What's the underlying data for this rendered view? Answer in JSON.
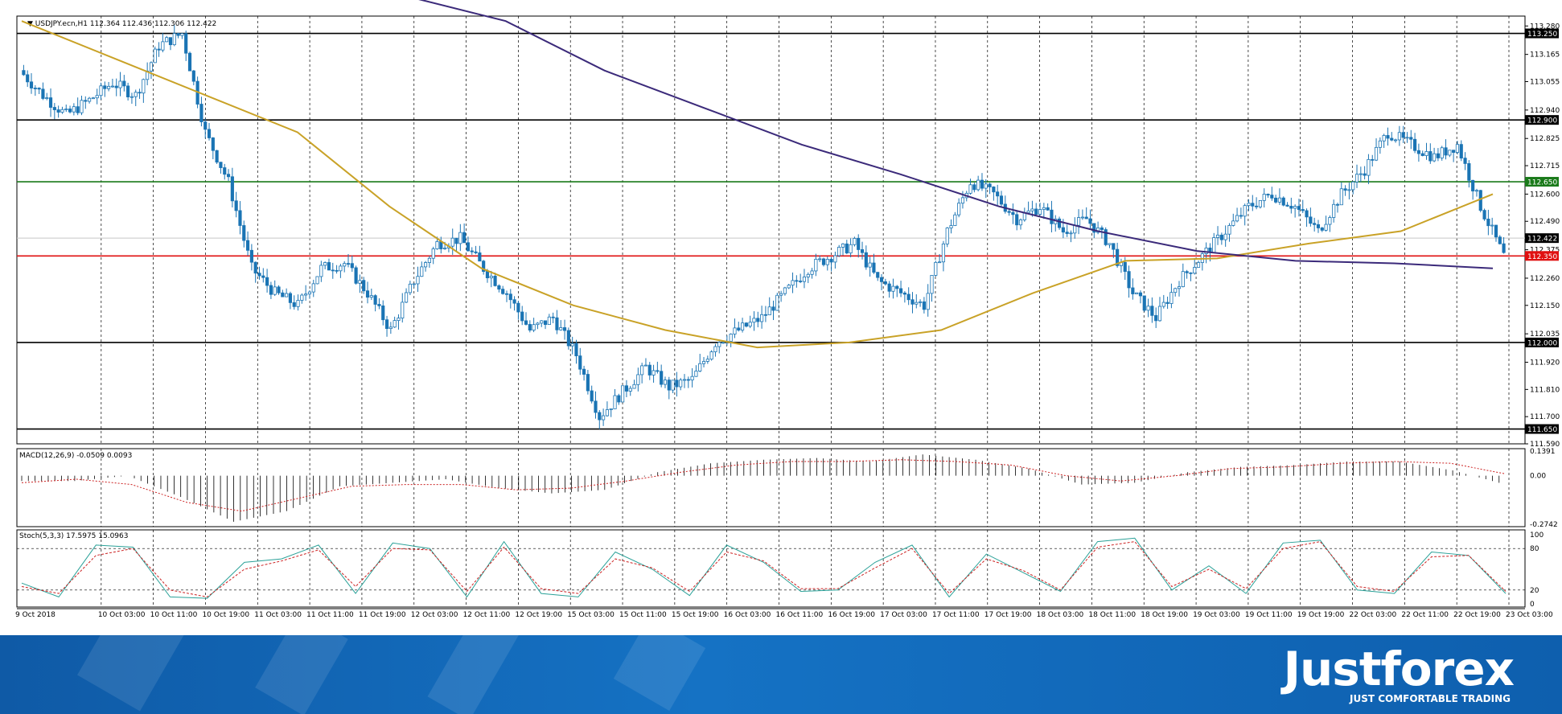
{
  "chart_data": [
    {
      "type": "candlestick",
      "title": "USDJPY.ecn,H1  112.364 112.436 112.306 112.422",
      "symbol": "USDJPY.ecn",
      "timeframe": "H1",
      "ohlc_current": {
        "open": 112.364,
        "high": 112.436,
        "low": 112.306,
        "close": 112.422
      },
      "ylim": [
        111.59,
        113.32
      ],
      "y_ticks": [
        "113.280",
        "113.165",
        "113.055",
        "112.940",
        "112.825",
        "112.715",
        "112.600",
        "112.490",
        "112.375",
        "112.260",
        "112.150",
        "112.035",
        "111.920",
        "111.810",
        "111.700",
        "111.590"
      ],
      "x_ticks": [
        "9 Oct 2018",
        "10 Oct 03:00",
        "10 Oct 11:00",
        "10 Oct 19:00",
        "11 Oct 03:00",
        "11 Oct 11:00",
        "11 Oct 19:00",
        "12 Oct 03:00",
        "12 Oct 11:00",
        "12 Oct 19:00",
        "15 Oct 03:00",
        "15 Oct 11:00",
        "15 Oct 19:00",
        "16 Oct 03:00",
        "16 Oct 11:00",
        "16 Oct 19:00",
        "17 Oct 03:00",
        "17 Oct 11:00",
        "17 Oct 19:00",
        "18 Oct 03:00",
        "18 Oct 11:00",
        "18 Oct 19:00",
        "19 Oct 03:00",
        "19 Oct 11:00",
        "19 Oct 19:00",
        "22 Oct 03:00",
        "22 Oct 11:00",
        "22 Oct 19:00",
        "23 Oct 03:00"
      ],
      "candle_color": "#1a74b4",
      "price_path": [
        113.1,
        113.0,
        112.92,
        112.98,
        113.05,
        113.0,
        113.2,
        113.25,
        112.85,
        112.65,
        112.3,
        112.2,
        112.15,
        112.3,
        112.32,
        112.2,
        112.05,
        112.25,
        112.4,
        112.42,
        112.3,
        112.2,
        112.05,
        112.1,
        111.95,
        111.7,
        111.8,
        111.9,
        111.82,
        111.85,
        112.0,
        112.05,
        112.1,
        112.2,
        112.3,
        112.35,
        112.4,
        112.25,
        112.2,
        112.15,
        112.45,
        112.65,
        112.6,
        112.5,
        112.55,
        112.45,
        112.5,
        112.4,
        112.2,
        112.1,
        112.25,
        112.35,
        112.45,
        112.55,
        112.6,
        112.55,
        112.45,
        112.6,
        112.7,
        112.85,
        112.8,
        112.75,
        112.8,
        112.55,
        112.35
      ],
      "horizontal_levels": [
        {
          "value": 113.25,
          "label": "113.250",
          "color": "#000000"
        },
        {
          "value": 112.9,
          "label": "112.900",
          "color": "#000000"
        },
        {
          "value": 112.65,
          "label": "112.650",
          "color": "#1a7a1a"
        },
        {
          "value": 112.422,
          "label": "112.422",
          "color": "#c8c8c8"
        },
        {
          "value": 112.35,
          "label": "112.350",
          "color": "#e01010"
        },
        {
          "value": 112.0,
          "label": "112.000",
          "color": "#000000"
        },
        {
          "value": 111.65,
          "label": "111.650",
          "color": "#000000"
        }
      ],
      "series": [
        {
          "type": "moving-average",
          "color": "#c9a227",
          "values": [
            113.3,
            113.15,
            113.0,
            112.85,
            112.55,
            112.3,
            112.15,
            112.05,
            111.98,
            112.0,
            112.05,
            112.2,
            112.33,
            112.34,
            112.4,
            112.45,
            112.6
          ]
        },
        {
          "type": "moving-average",
          "color": "#3b2a7a",
          "values": [
            113.4,
            113.3,
            113.1,
            112.95,
            112.8,
            112.68,
            112.55,
            112.45,
            112.37,
            112.33,
            112.32,
            112.3
          ]
        }
      ]
    },
    {
      "type": "histogram",
      "title": "MACD(12,26,9) -0.0509 0.0093",
      "ylim": [
        -0.2742,
        0.1391
      ],
      "y_ticks": [
        "0.1391",
        "0.00",
        "-0.2742"
      ],
      "histogram": [
        -0.03,
        -0.03,
        0.0,
        -0.12,
        -0.26,
        -0.2,
        -0.06,
        -0.04,
        -0.02,
        -0.07,
        -0.1,
        -0.08,
        0.02,
        0.07,
        0.09,
        0.1,
        0.08,
        0.12,
        0.09,
        0.04,
        -0.05,
        -0.04,
        0.02,
        0.05,
        0.06,
        0.08,
        0.08,
        0.03,
        -0.05
      ],
      "signal": [
        -0.04,
        -0.02,
        -0.05,
        -0.15,
        -0.2,
        -0.13,
        -0.06,
        -0.05,
        -0.05,
        -0.08,
        -0.07,
        -0.03,
        0.02,
        0.06,
        0.08,
        0.08,
        0.09,
        0.08,
        0.06,
        0.0,
        -0.03,
        0.0,
        0.04,
        0.05,
        0.07,
        0.08,
        0.07,
        0.01
      ]
    },
    {
      "type": "line",
      "title": "Stoch(5,3,3) 17.5975 15.0963",
      "ylim": [
        0,
        100
      ],
      "y_ticks": [
        "100",
        "80",
        "20",
        "0"
      ],
      "levels": [
        80,
        20
      ],
      "series": [
        {
          "name": "Stoch",
          "color": "#2aa198",
          "values": [
            30,
            10,
            85,
            82,
            10,
            8,
            60,
            65,
            85,
            15,
            88,
            80,
            10,
            90,
            15,
            10,
            75,
            50,
            12,
            85,
            60,
            18,
            20,
            60,
            85,
            10,
            72,
            45,
            18,
            90,
            95,
            20,
            55,
            15,
            88,
            92,
            20,
            15,
            75,
            70,
            15
          ]
        },
        {
          "name": "Signal",
          "color": "#cc2222",
          "values": [
            25,
            15,
            70,
            80,
            20,
            10,
            50,
            62,
            78,
            25,
            80,
            78,
            18,
            82,
            22,
            15,
            65,
            52,
            18,
            75,
            62,
            22,
            22,
            52,
            80,
            15,
            65,
            48,
            20,
            82,
            90,
            25,
            50,
            22,
            80,
            90,
            25,
            18,
            68,
            70,
            18
          ]
        }
      ]
    }
  ],
  "branding": {
    "logo_text": "Justforex",
    "tagline": "JUST COMFORTABLE TRADING"
  }
}
